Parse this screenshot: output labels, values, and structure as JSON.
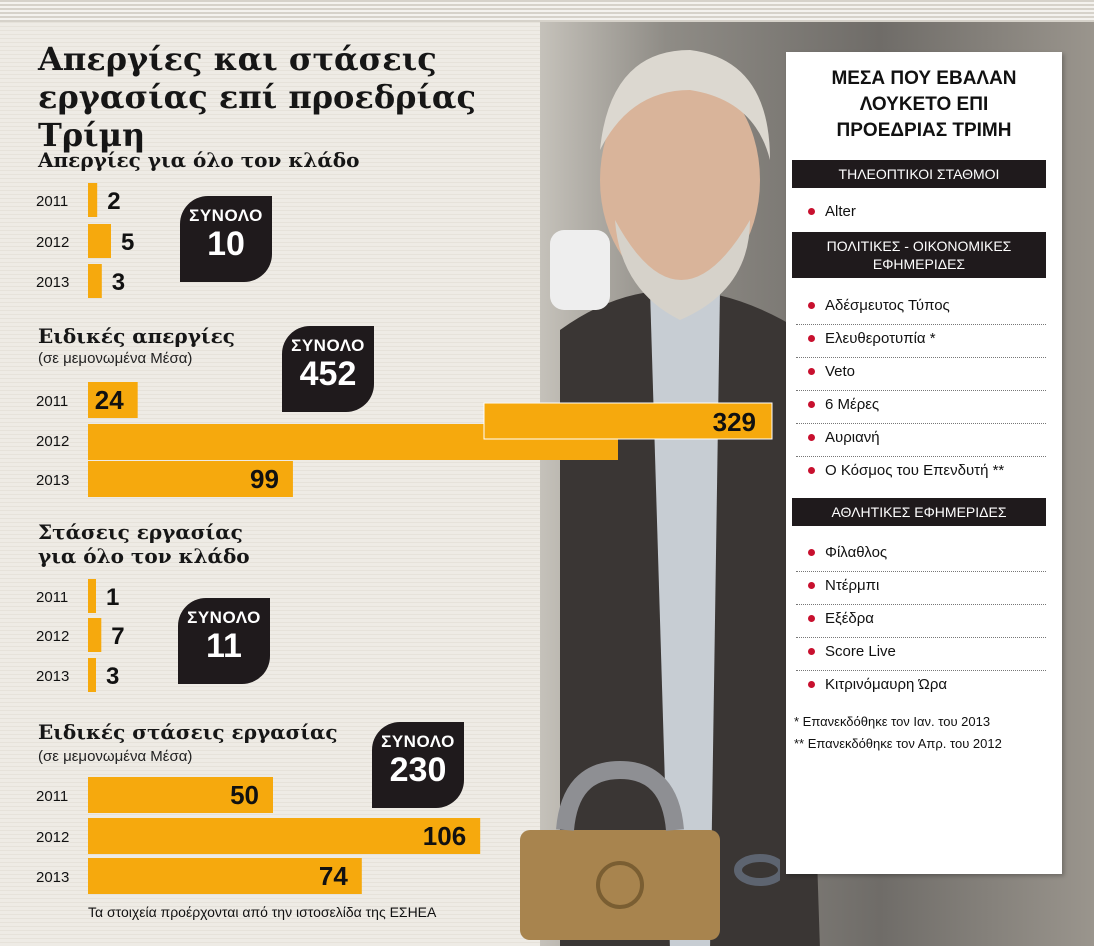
{
  "title_lines": [
    "Απεργίες και στάσεις",
    "εργασίας επί προεδρίας Τρίμη"
  ],
  "colors": {
    "bar": "#f6a90d",
    "badge": "#1f1a1c",
    "bullet": "#c8102e"
  },
  "sections": {
    "s1": {
      "title_lines": [
        "Απεργίες για όλο τον κλάδο"
      ],
      "subtitle": "",
      "total_label": "ΣΥΝΟΛΟ",
      "total": "10"
    },
    "s2": {
      "title_lines": [
        "Ειδικές απεργίες"
      ],
      "subtitle": "(σε μεμονωμένα Μέσα)",
      "total_label": "ΣΥΝΟΛΟ",
      "total": "452"
    },
    "s3": {
      "title_lines": [
        "Στάσεις εργασίας",
        "για όλο τον κλάδο"
      ],
      "subtitle": "",
      "total_label": "ΣΥΝΟΛΟ",
      "total": "11"
    },
    "s4": {
      "title_lines": [
        "Ειδικές στάσεις εργασίας"
      ],
      "subtitle": "(σε μεμονωμένα Μέσα)",
      "total_label": "ΣΥΝΟΛΟ",
      "total": "230"
    }
  },
  "chart_data": [
    {
      "type": "bar",
      "orientation": "horizontal",
      "title": "Απεργίες για όλο τον κλάδο",
      "categories": [
        "2011",
        "2012",
        "2013"
      ],
      "values": [
        2,
        5,
        3
      ]
    },
    {
      "type": "bar",
      "orientation": "horizontal",
      "title": "Ειδικές απεργίες",
      "subtitle": "(σε μεμονωμένα Μέσα)",
      "categories": [
        "2011",
        "2012",
        "2013"
      ],
      "values": [
        24,
        329,
        99
      ]
    },
    {
      "type": "bar",
      "orientation": "horizontal",
      "title": "Στάσεις εργασίας για όλο τον κλάδο",
      "categories": [
        "2011",
        "2012",
        "2013"
      ],
      "values": [
        1,
        7,
        3
      ]
    },
    {
      "type": "bar",
      "orientation": "horizontal",
      "title": "Ειδικές στάσεις εργασίας",
      "subtitle": "(σε μεμονωμένα Μέσα)",
      "categories": [
        "2011",
        "2012",
        "2013"
      ],
      "values": [
        50,
        106,
        74
      ]
    }
  ],
  "footer": "Τα στοιχεία προέρχονται από την ιστοσελίδα της ΕΣΗΕΑ",
  "panel": {
    "title_lines": [
      "ΜΕΣΑ ΠΟΥ ΕΒΑΛΑΝ",
      "ΛΟΥΚΕΤΟ ΕΠΙ",
      "ΠΡΟΕΔΡΙΑΣ ΤΡΙΜΗ"
    ],
    "categories": [
      {
        "label_lines": [
          "ΤΗΛΕΟΠΤΙΚΟΙ ΣΤΑΘΜΟΙ"
        ],
        "items": [
          "Alter"
        ]
      },
      {
        "label_lines": [
          "ΠΟΛΙΤΙΚΕΣ - ΟΙΚΟΝΟΜΙΚΕΣ",
          "ΕΦΗΜΕΡΙΔΕΣ"
        ],
        "items": [
          "Αδέσμευτος Τύπος",
          "Ελευθεροτυπία *",
          "Veto",
          "6 Μέρες",
          "Αυριανή",
          "Ο Κόσμος του Επενδυτή **"
        ]
      },
      {
        "label_lines": [
          "ΑΘΛΗΤΙΚΕΣ ΕΦΗΜΕΡΙΔΕΣ"
        ],
        "items": [
          "Φίλαθλος",
          "Ντέρμπι",
          "Εξέδρα",
          "Score Live",
          "Κιτρινόμαυρη Ώρα"
        ]
      }
    ],
    "notes": [
      "*  Επανεκδόθηκε τον Ιαν. του 2013",
      "** Επανεκδόθηκε τον Απρ. του 2012"
    ]
  }
}
